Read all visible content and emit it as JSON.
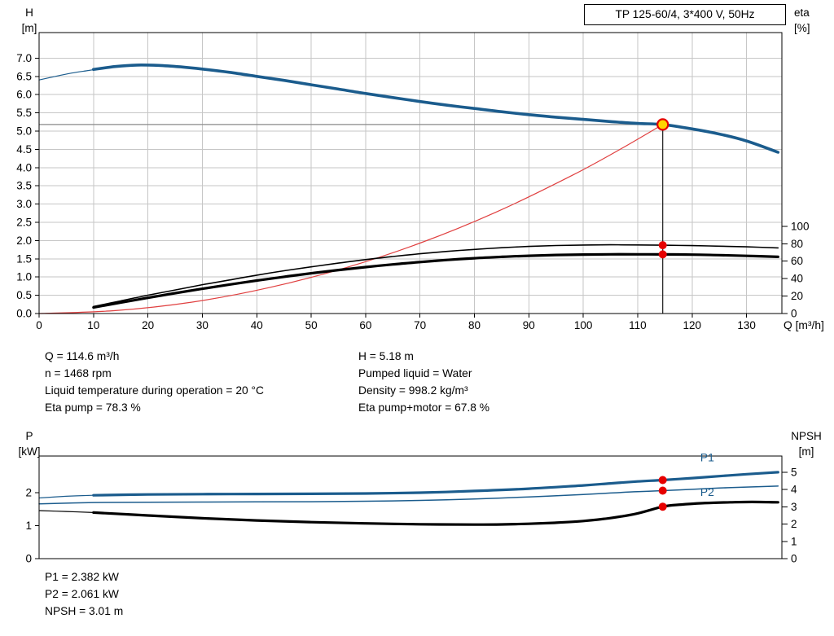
{
  "title_box": {
    "label": "TP 125-60/4, 3*400 V, 50Hz"
  },
  "axis_headers": {
    "top_left_1": "H",
    "top_left_2": "[m]",
    "top_right_1": "eta",
    "top_right_2": "[%]",
    "x_label": "Q [m³/h]",
    "bottom_left_1": "P",
    "bottom_left_2": "[kW]",
    "bottom_right_1": "NPSH",
    "bottom_right_2": "[m]"
  },
  "operating_point_info": {
    "left_column": [
      "Q = 114.6 m³/h",
      "n = 1468 rpm",
      "Liquid temperature during operation = 20 °C",
      "Eta pump = 78.3 %"
    ],
    "right_column": [
      "H = 5.18 m",
      "Pumped liquid = Water",
      "Density = 998.2 kg/m³",
      "Eta pump+motor = 67.8 %"
    ]
  },
  "power_info": [
    "P1 = 2.382 kW",
    "P2 = 2.061 kW",
    "NPSH = 3.01 m"
  ],
  "colors": {
    "curve_blue": "#1b5c8d",
    "curve_black": "#000000",
    "system_red": "#e04040",
    "marker_red": "#e60000",
    "marker_yellow": "#ffd400",
    "grid": "#c6c6c6",
    "crosshair": "#8a8a8a"
  },
  "chart_data": [
    {
      "id": "head_chart",
      "type": "line",
      "title": "TP 125-60/4, 3*400 V, 50Hz",
      "x_axis": {
        "label": "Q [m³/h]",
        "min": 0,
        "max": 136.5,
        "decimals": 0,
        "grid": true,
        "ticks": [
          0,
          10,
          20,
          30,
          40,
          50,
          60,
          70,
          80,
          90,
          100,
          110,
          120,
          130
        ]
      },
      "y_left": {
        "label": "H [m]",
        "min": 0,
        "max": 7.7,
        "decimals": 1,
        "grid": true,
        "ticks": [
          0,
          0.5,
          1,
          1.5,
          2,
          2.5,
          3,
          3.5,
          4,
          4.5,
          5,
          5.5,
          6,
          6.5,
          7
        ]
      },
      "y_right": {
        "label": "eta [%]",
        "min": 0,
        "max": 322,
        "decimals": 0,
        "ticks": [
          0,
          20,
          40,
          60,
          80,
          100
        ]
      },
      "crosshair": {
        "q": 114.6,
        "h": 5.18
      },
      "series": [
        {
          "name": "head-curve-lead",
          "axis": "left",
          "color": "#1b5c8d",
          "width": 1.2,
          "points": [
            [
              0,
              6.4
            ],
            [
              3,
              6.5
            ],
            [
              6,
              6.59
            ],
            [
              9,
              6.66
            ],
            [
              12,
              6.73
            ]
          ]
        },
        {
          "name": "head-curve",
          "axis": "left",
          "color": "#1b5c8d",
          "width": 3.6,
          "points": [
            [
              10,
              6.69
            ],
            [
              14,
              6.77
            ],
            [
              18,
              6.81
            ],
            [
              22,
              6.8
            ],
            [
              26,
              6.76
            ],
            [
              30,
              6.7
            ],
            [
              35,
              6.61
            ],
            [
              40,
              6.5
            ],
            [
              45,
              6.39
            ],
            [
              50,
              6.27
            ],
            [
              55,
              6.15
            ],
            [
              60,
              6.03
            ],
            [
              65,
              5.92
            ],
            [
              70,
              5.81
            ],
            [
              75,
              5.71
            ],
            [
              80,
              5.62
            ],
            [
              85,
              5.53
            ],
            [
              90,
              5.45
            ],
            [
              95,
              5.38
            ],
            [
              100,
              5.32
            ],
            [
              105,
              5.26
            ],
            [
              110,
              5.21
            ],
            [
              114.6,
              5.18
            ],
            [
              120,
              5.06
            ],
            [
              125,
              4.92
            ],
            [
              130,
              4.73
            ],
            [
              135.8,
              4.42
            ]
          ]
        },
        {
          "name": "system-curve",
          "axis": "left",
          "color": "#e04040",
          "width": 1.2,
          "points": [
            [
              0,
              0
            ],
            [
              14,
              0.08
            ],
            [
              28,
              0.31
            ],
            [
              42,
              0.7
            ],
            [
              56,
              1.24
            ],
            [
              70,
              1.93
            ],
            [
              84,
              2.78
            ],
            [
              98,
              3.79
            ],
            [
              107,
              4.52
            ],
            [
              114.6,
              5.18
            ]
          ]
        },
        {
          "name": "eta-pump-curve",
          "axis": "right",
          "color": "#000000",
          "width": 1.6,
          "points": [
            [
              10,
              8
            ],
            [
              15,
              14.5
            ],
            [
              20,
              21
            ],
            [
              25,
              27
            ],
            [
              30,
              33
            ],
            [
              35,
              38.5
            ],
            [
              40,
              44
            ],
            [
              45,
              49
            ],
            [
              50,
              53.5
            ],
            [
              55,
              57.8
            ],
            [
              60,
              61.8
            ],
            [
              65,
              65.3
            ],
            [
              70,
              68.5
            ],
            [
              75,
              71.2
            ],
            [
              80,
              73.5
            ],
            [
              85,
              75.4
            ],
            [
              90,
              76.9
            ],
            [
              95,
              77.9
            ],
            [
              100,
              78.5
            ],
            [
              105,
              78.8
            ],
            [
              110,
              78.6
            ],
            [
              114.6,
              78.3
            ],
            [
              120,
              77.8
            ],
            [
              125,
              77.2
            ],
            [
              130,
              76.4
            ],
            [
              135.8,
              75.2
            ]
          ]
        },
        {
          "name": "eta-pump-motor-curve",
          "axis": "right",
          "color": "#000000",
          "width": 3.2,
          "points": [
            [
              10,
              7
            ],
            [
              15,
              12.5
            ],
            [
              20,
              18
            ],
            [
              25,
              23.3
            ],
            [
              30,
              28.4
            ],
            [
              35,
              33.2
            ],
            [
              40,
              37.8
            ],
            [
              45,
              42.1
            ],
            [
              50,
              46.1
            ],
            [
              55,
              49.8
            ],
            [
              60,
              53.2
            ],
            [
              65,
              56.3
            ],
            [
              70,
              59.0
            ],
            [
              75,
              61.4
            ],
            [
              80,
              63.4
            ],
            [
              85,
              65.0
            ],
            [
              90,
              66.2
            ],
            [
              95,
              67.1
            ],
            [
              100,
              67.6
            ],
            [
              105,
              67.9
            ],
            [
              110,
              67.9
            ],
            [
              114.6,
              67.8
            ],
            [
              120,
              67.5
            ],
            [
              125,
              66.9
            ],
            [
              130,
              66.1
            ],
            [
              135.8,
              65.0
            ]
          ]
        }
      ],
      "markers": [
        {
          "name": "eta-pump-marker",
          "style": "dot",
          "axis": "right",
          "q": 114.6,
          "v": 78.3
        },
        {
          "name": "eta-pump-motor-marker",
          "style": "dot",
          "axis": "right",
          "q": 114.6,
          "v": 67.8
        },
        {
          "name": "duty-point-marker",
          "style": "op",
          "axis": "left",
          "q": 114.6,
          "v": 5.18
        }
      ],
      "annotations": []
    },
    {
      "id": "power_chart",
      "type": "line",
      "title": "",
      "x_axis": {
        "label": "",
        "min": 0,
        "max": 136.5,
        "decimals": 0,
        "grid": false,
        "hide_labels": true,
        "ticks": []
      },
      "y_left": {
        "label": "P [kW]",
        "min": 0,
        "max": 3.11,
        "decimals": 0,
        "grid": false,
        "ticks": [
          0,
          1,
          2
        ]
      },
      "y_right": {
        "label": "NPSH [m]",
        "min": 0,
        "max": 5.94,
        "decimals": 0,
        "ticks": [
          0,
          1,
          2,
          3,
          4,
          5
        ]
      },
      "series": [
        {
          "name": "p1-curve-lead",
          "axis": "left",
          "color": "#1b5c8d",
          "width": 1.2,
          "points": [
            [
              0,
              1.84
            ],
            [
              5,
              1.89
            ],
            [
              10,
              1.92
            ]
          ]
        },
        {
          "name": "p1-curve",
          "axis": "left",
          "color": "#1b5c8d",
          "width": 3.2,
          "points": [
            [
              10,
              1.92
            ],
            [
              20,
              1.945
            ],
            [
              30,
              1.955
            ],
            [
              40,
              1.96
            ],
            [
              50,
              1.965
            ],
            [
              60,
              1.975
            ],
            [
              70,
              2.0
            ],
            [
              80,
              2.05
            ],
            [
              90,
              2.12
            ],
            [
              100,
              2.22
            ],
            [
              105,
              2.28
            ],
            [
              110,
              2.34
            ],
            [
              114.6,
              2.382
            ],
            [
              120,
              2.44
            ],
            [
              125,
              2.5
            ],
            [
              130,
              2.56
            ],
            [
              135.8,
              2.62
            ]
          ]
        },
        {
          "name": "p2-curve",
          "axis": "left",
          "color": "#1b5c8d",
          "width": 1.5,
          "points": [
            [
              0,
              1.66
            ],
            [
              10,
              1.7
            ],
            [
              20,
              1.71
            ],
            [
              30,
              1.715
            ],
            [
              40,
              1.72
            ],
            [
              50,
              1.725
            ],
            [
              60,
              1.74
            ],
            [
              70,
              1.765
            ],
            [
              80,
              1.81
            ],
            [
              90,
              1.87
            ],
            [
              100,
              1.945
            ],
            [
              105,
              1.99
            ],
            [
              110,
              2.03
            ],
            [
              114.6,
              2.061
            ],
            [
              120,
              2.1
            ],
            [
              125,
              2.14
            ],
            [
              130,
              2.17
            ],
            [
              135.8,
              2.2
            ]
          ]
        },
        {
          "name": "npsh-curve-lead",
          "axis": "right",
          "color": "#000000",
          "width": 1.2,
          "points": [
            [
              0,
              2.78
            ],
            [
              5,
              2.73
            ],
            [
              10,
              2.67
            ]
          ]
        },
        {
          "name": "npsh-curve",
          "axis": "right",
          "color": "#000000",
          "width": 3.2,
          "points": [
            [
              10,
              2.67
            ],
            [
              20,
              2.5
            ],
            [
              30,
              2.34
            ],
            [
              40,
              2.21
            ],
            [
              50,
              2.11
            ],
            [
              60,
              2.04
            ],
            [
              70,
              1.99
            ],
            [
              80,
              1.97
            ],
            [
              85,
              1.98
            ],
            [
              90,
              2.02
            ],
            [
              95,
              2.08
            ],
            [
              100,
              2.18
            ],
            [
              105,
              2.35
            ],
            [
              110,
              2.62
            ],
            [
              114.6,
              3.01
            ],
            [
              118,
              3.13
            ],
            [
              122,
              3.21
            ],
            [
              127,
              3.26
            ],
            [
              131,
              3.28
            ],
            [
              135.8,
              3.26
            ]
          ]
        }
      ],
      "markers": [
        {
          "name": "p1-marker",
          "style": "dot",
          "axis": "left",
          "q": 114.6,
          "v": 2.382
        },
        {
          "name": "p2-marker",
          "style": "dot",
          "axis": "left",
          "q": 114.6,
          "v": 2.061
        },
        {
          "name": "npsh-marker",
          "style": "dot",
          "axis": "right",
          "q": 114.6,
          "v": 3.01
        }
      ],
      "annotations": [
        {
          "text": "P1",
          "axis": "left",
          "q": 121.5,
          "v": 2.95,
          "color": "#1b5c8d"
        },
        {
          "text": "P2",
          "axis": "left",
          "q": 121.5,
          "v": 1.9,
          "color": "#1b5c8d"
        }
      ]
    }
  ]
}
